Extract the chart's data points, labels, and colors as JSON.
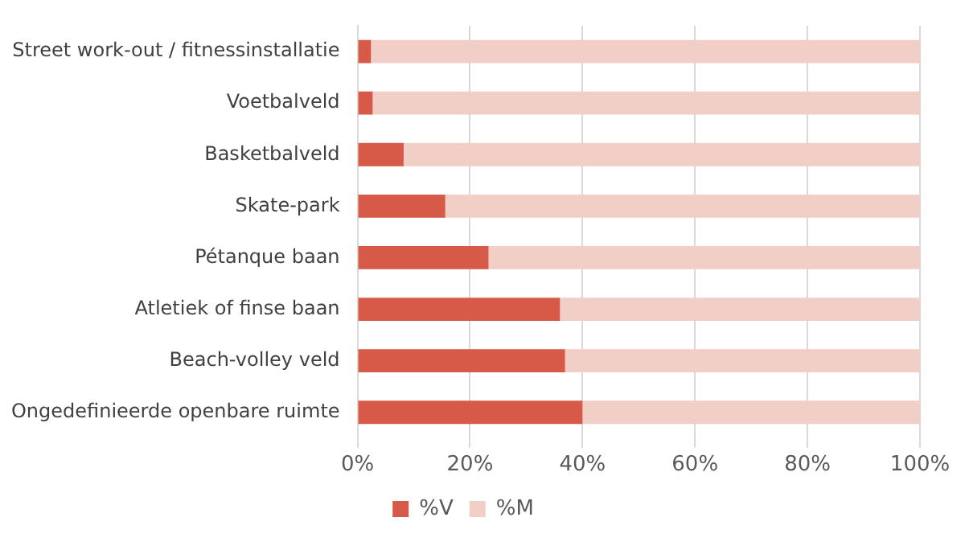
{
  "chart_data": {
    "type": "bar",
    "orientation": "horizontal",
    "stacked": true,
    "categories": [
      "Street work-out / fitnessinstallatie",
      "Voetbalveld",
      "Basketbalveld",
      "Skate-park",
      "Pétanque baan",
      "Atletiek of finse baan",
      "Beach-volley veld",
      "Ongedefinieerde openbare ruimte"
    ],
    "series": [
      {
        "name": "%V",
        "color": "#d65a47",
        "values": [
          2.4,
          2.7,
          8.2,
          15.6,
          23.3,
          36,
          36.9,
          40
        ]
      },
      {
        "name": "%M",
        "color": "#f2cfc6",
        "values": [
          97.6,
          97.3,
          91.8,
          84.4,
          76.7,
          64,
          63.1,
          60
        ]
      }
    ],
    "xlim": [
      0,
      100
    ],
    "xticks": [
      {
        "value": 0,
        "label": "0%"
      },
      {
        "value": 20,
        "label": "20%"
      },
      {
        "value": 40,
        "label": "40%"
      },
      {
        "value": 60,
        "label": "60%"
      },
      {
        "value": 80,
        "label": "80%"
      },
      {
        "value": 100,
        "label": "100%"
      }
    ],
    "grid": "x",
    "legend": "bottom"
  }
}
